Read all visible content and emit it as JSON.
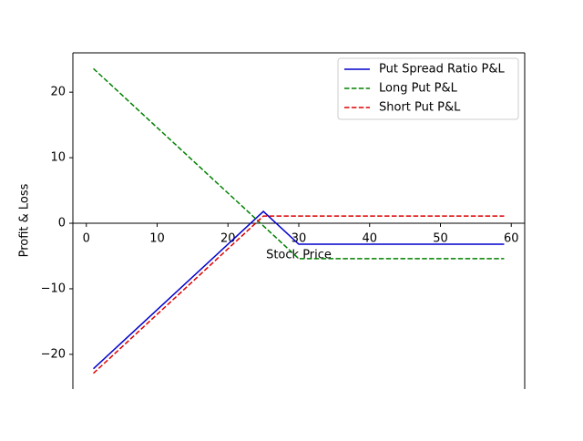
{
  "chart_data": {
    "type": "line",
    "x": [
      1,
      25,
      30,
      59
    ],
    "series": [
      {
        "name": "Put Spread Ratio P&L",
        "color": "#0000cc",
        "dash": "solid",
        "values": [
          -22.2,
          1.8,
          -3.2,
          -3.2
        ]
      },
      {
        "name": "Long Put P&L",
        "color": "#008000",
        "dash": "dashed",
        "values": [
          23.6,
          -0.4,
          -5.4,
          -5.4
        ]
      },
      {
        "name": "Short Put P&L",
        "color": "#dd0000",
        "dash": "dashed",
        "values": [
          -22.9,
          1.1,
          1.1,
          1.1
        ]
      }
    ],
    "xlabel": "Stock Price",
    "ylabel": "Profit & Loss",
    "xlim": [
      -1.9,
      61.9
    ],
    "xticks": [
      0,
      10,
      20,
      30,
      40,
      50,
      60
    ],
    "ylim": [
      -25.3,
      26.0
    ],
    "yticks": [
      {
        "value": -20,
        "label": "−20"
      },
      {
        "value": -10,
        "label": "−10"
      },
      0,
      10,
      20
    ],
    "legend": "upper right",
    "grid": false
  }
}
